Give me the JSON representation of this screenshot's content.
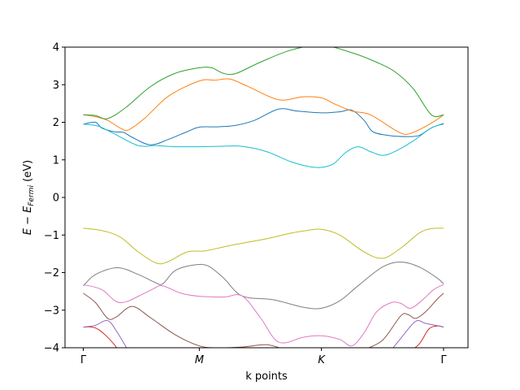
{
  "chart_data": {
    "type": "line",
    "xlabel": "k points",
    "ylabel": {
      "main": "E − E",
      "sub": "Fermi",
      "unit": " (eV)",
      "italic_main": true
    },
    "ylim": [
      -4,
      4
    ],
    "yticks": [
      -4,
      -3,
      -2,
      -1,
      0,
      1,
      2,
      3,
      4
    ],
    "xlim": [
      -0.15,
      3.15
    ],
    "xticks": [
      {
        "x": 0,
        "label": "Γ"
      },
      {
        "x": 0.95,
        "label": "M"
      },
      {
        "x": 1.95,
        "label": "K"
      },
      {
        "x": 2.95,
        "label": "Γ"
      }
    ],
    "series": [
      {
        "color": "#1f77b4",
        "points": [
          [
            0,
            1.95
          ],
          [
            0.1,
            2.0
          ],
          [
            0.15,
            1.85
          ],
          [
            0.25,
            1.75
          ],
          [
            0.33,
            1.73
          ],
          [
            0.4,
            1.6
          ],
          [
            0.55,
            1.4
          ],
          [
            0.7,
            1.55
          ],
          [
            0.85,
            1.75
          ],
          [
            0.95,
            1.87
          ],
          [
            1.1,
            1.88
          ],
          [
            1.25,
            1.92
          ],
          [
            1.4,
            2.05
          ],
          [
            1.6,
            2.35
          ],
          [
            1.75,
            2.3
          ],
          [
            1.95,
            2.25
          ],
          [
            2.1,
            2.28
          ],
          [
            2.2,
            2.32
          ],
          [
            2.3,
            2.05
          ],
          [
            2.37,
            1.75
          ],
          [
            2.5,
            1.65
          ],
          [
            2.65,
            1.62
          ],
          [
            2.75,
            1.65
          ],
          [
            2.85,
            1.85
          ],
          [
            2.95,
            1.97
          ]
        ]
      },
      {
        "color": "#ff7f0e",
        "points": [
          [
            0,
            2.2
          ],
          [
            0.1,
            2.15
          ],
          [
            0.2,
            2.05
          ],
          [
            0.3,
            1.85
          ],
          [
            0.37,
            1.8
          ],
          [
            0.5,
            2.1
          ],
          [
            0.7,
            2.7
          ],
          [
            0.95,
            3.1
          ],
          [
            1.08,
            3.12
          ],
          [
            1.2,
            3.15
          ],
          [
            1.35,
            2.95
          ],
          [
            1.6,
            2.6
          ],
          [
            1.8,
            2.68
          ],
          [
            1.95,
            2.65
          ],
          [
            2.05,
            2.5
          ],
          [
            2.2,
            2.3
          ],
          [
            2.35,
            2.2
          ],
          [
            2.55,
            1.8
          ],
          [
            2.65,
            1.68
          ],
          [
            2.78,
            1.85
          ],
          [
            2.9,
            2.08
          ],
          [
            2.95,
            2.2
          ]
        ]
      },
      {
        "color": "#2ca02c",
        "points": [
          [
            0,
            2.2
          ],
          [
            0.1,
            2.18
          ],
          [
            0.2,
            2.1
          ],
          [
            0.35,
            2.4
          ],
          [
            0.55,
            2.95
          ],
          [
            0.75,
            3.3
          ],
          [
            0.95,
            3.45
          ],
          [
            1.05,
            3.45
          ],
          [
            1.15,
            3.3
          ],
          [
            1.25,
            3.3
          ],
          [
            1.45,
            3.6
          ],
          [
            1.7,
            3.92
          ],
          [
            1.95,
            4.05
          ],
          [
            2.2,
            3.85
          ],
          [
            2.4,
            3.6
          ],
          [
            2.55,
            3.35
          ],
          [
            2.7,
            2.9
          ],
          [
            2.85,
            2.2
          ],
          [
            2.95,
            2.2
          ]
        ]
      },
      {
        "color": "#d62728",
        "points": [
          [
            0,
            -3.45
          ],
          [
            0.07,
            -3.45
          ],
          [
            0.14,
            -3.55
          ],
          [
            0.25,
            -3.9
          ],
          [
            0.3,
            -4.15
          ]
        ]
      },
      {
        "color": "#d62728",
        "points": [
          [
            2.65,
            -4.15
          ],
          [
            2.75,
            -3.9
          ],
          [
            2.83,
            -3.5
          ],
          [
            2.9,
            -3.42
          ],
          [
            2.95,
            -3.45
          ]
        ]
      },
      {
        "color": "#9467bd",
        "points": [
          [
            0,
            -3.45
          ],
          [
            0.1,
            -3.4
          ],
          [
            0.2,
            -3.28
          ],
          [
            0.28,
            -3.6
          ],
          [
            0.38,
            -4.15
          ]
        ]
      },
      {
        "color": "#9467bd",
        "points": [
          [
            2.5,
            -4.15
          ],
          [
            2.6,
            -3.75
          ],
          [
            2.72,
            -3.3
          ],
          [
            2.8,
            -3.35
          ],
          [
            2.88,
            -3.4
          ],
          [
            2.95,
            -3.45
          ]
        ]
      },
      {
        "color": "#8c564b",
        "points": [
          [
            0,
            -2.55
          ],
          [
            0.1,
            -2.8
          ],
          [
            0.2,
            -3.22
          ],
          [
            0.27,
            -3.18
          ],
          [
            0.4,
            -2.9
          ],
          [
            0.55,
            -3.2
          ],
          [
            0.75,
            -3.65
          ],
          [
            0.95,
            -3.95
          ],
          [
            1.1,
            -4.0
          ],
          [
            1.3,
            -3.98
          ],
          [
            1.5,
            -3.92
          ],
          [
            1.65,
            -4.05
          ]
        ]
      },
      {
        "color": "#8c564b",
        "points": [
          [
            2.3,
            -4.05
          ],
          [
            2.45,
            -3.8
          ],
          [
            2.6,
            -3.15
          ],
          [
            2.66,
            -3.12
          ],
          [
            2.72,
            -3.22
          ],
          [
            2.8,
            -3.05
          ],
          [
            2.9,
            -2.7
          ],
          [
            2.95,
            -2.55
          ]
        ]
      },
      {
        "color": "#7f7f7f",
        "points": [
          [
            0,
            -2.35
          ],
          [
            0.1,
            -2.05
          ],
          [
            0.28,
            -1.87
          ],
          [
            0.45,
            -2.05
          ],
          [
            0.58,
            -2.25
          ],
          [
            0.65,
            -2.3
          ],
          [
            0.75,
            -1.95
          ],
          [
            0.9,
            -1.8
          ],
          [
            1.02,
            -1.82
          ],
          [
            1.15,
            -2.15
          ],
          [
            1.3,
            -2.62
          ],
          [
            1.55,
            -2.72
          ],
          [
            1.8,
            -2.92
          ],
          [
            1.95,
            -2.95
          ],
          [
            2.1,
            -2.75
          ],
          [
            2.25,
            -2.35
          ],
          [
            2.45,
            -1.85
          ],
          [
            2.6,
            -1.72
          ],
          [
            2.75,
            -1.85
          ],
          [
            2.9,
            -2.15
          ],
          [
            2.95,
            -2.3
          ]
        ]
      },
      {
        "color": "#e377c2",
        "points": [
          [
            0,
            -2.32
          ],
          [
            0.15,
            -2.45
          ],
          [
            0.3,
            -2.8
          ],
          [
            0.5,
            -2.55
          ],
          [
            0.58,
            -2.42
          ],
          [
            0.65,
            -2.35
          ],
          [
            0.8,
            -2.55
          ],
          [
            0.95,
            -2.63
          ],
          [
            1.15,
            -2.65
          ],
          [
            1.3,
            -2.62
          ],
          [
            1.45,
            -3.2
          ],
          [
            1.6,
            -3.85
          ],
          [
            1.8,
            -3.72
          ],
          [
            1.95,
            -3.68
          ],
          [
            2.1,
            -3.78
          ],
          [
            2.2,
            -3.95
          ],
          [
            2.3,
            -3.6
          ],
          [
            2.4,
            -3.05
          ],
          [
            2.52,
            -2.8
          ],
          [
            2.6,
            -2.82
          ],
          [
            2.68,
            -2.95
          ],
          [
            2.78,
            -2.72
          ],
          [
            2.87,
            -2.45
          ],
          [
            2.95,
            -2.32
          ]
        ]
      },
      {
        "color": "#bcbd22",
        "points": [
          [
            0,
            -0.82
          ],
          [
            0.15,
            -0.88
          ],
          [
            0.3,
            -1.05
          ],
          [
            0.45,
            -1.45
          ],
          [
            0.6,
            -1.75
          ],
          [
            0.7,
            -1.7
          ],
          [
            0.85,
            -1.45
          ],
          [
            1.0,
            -1.42
          ],
          [
            1.2,
            -1.28
          ],
          [
            1.5,
            -1.1
          ],
          [
            1.7,
            -0.95
          ],
          [
            1.85,
            -0.87
          ],
          [
            1.95,
            -0.85
          ],
          [
            2.1,
            -1.0
          ],
          [
            2.3,
            -1.45
          ],
          [
            2.45,
            -1.62
          ],
          [
            2.6,
            -1.35
          ],
          [
            2.75,
            -0.95
          ],
          [
            2.85,
            -0.83
          ],
          [
            2.95,
            -0.82
          ]
        ]
      },
      {
        "color": "#17becf",
        "points": [
          [
            0,
            1.95
          ],
          [
            0.12,
            1.9
          ],
          [
            0.25,
            1.7
          ],
          [
            0.45,
            1.38
          ],
          [
            0.6,
            1.38
          ],
          [
            0.75,
            1.35
          ],
          [
            0.95,
            1.35
          ],
          [
            1.1,
            1.36
          ],
          [
            1.3,
            1.36
          ],
          [
            1.5,
            1.22
          ],
          [
            1.7,
            0.95
          ],
          [
            1.85,
            0.82
          ],
          [
            1.95,
            0.8
          ],
          [
            2.05,
            0.9
          ],
          [
            2.15,
            1.2
          ],
          [
            2.25,
            1.35
          ],
          [
            2.35,
            1.22
          ],
          [
            2.45,
            1.12
          ],
          [
            2.55,
            1.22
          ],
          [
            2.7,
            1.5
          ],
          [
            2.85,
            1.85
          ],
          [
            2.95,
            1.95
          ]
        ]
      }
    ]
  }
}
